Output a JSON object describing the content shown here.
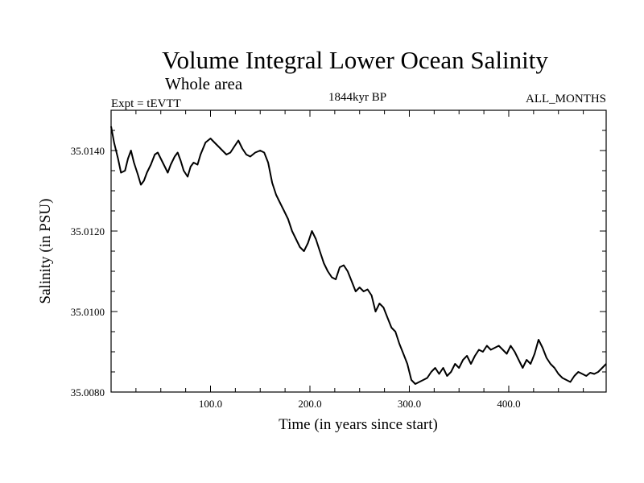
{
  "chart_data": {
    "type": "line",
    "title": "Volume Integral Lower Ocean Salinity",
    "subtitle": "Whole area",
    "expt_label": "Expt = tEVTT",
    "period_label": "1844kyr BP",
    "months_label": "ALL_MONTHS",
    "xlabel": "Time (in years since start)",
    "ylabel": "Salinity (in PSU)",
    "xlim": [
      0,
      498
    ],
    "ylim": [
      35.008,
      35.015
    ],
    "x_ticks": [
      100,
      200,
      300,
      400
    ],
    "x_tick_labels": [
      "100.0",
      "200.0",
      "300.0",
      "400.0"
    ],
    "y_ticks": [
      35.008,
      35.01,
      35.012,
      35.014
    ],
    "y_tick_labels": [
      "35.0080",
      "35.0100",
      "35.0120",
      "35.0140"
    ],
    "grid": false,
    "series": [
      {
        "name": "Salinity",
        "color": "#000000",
        "x": [
          0,
          3,
          7,
          10,
          14,
          17,
          20,
          23,
          27,
          30,
          33,
          36,
          40,
          44,
          47,
          50,
          54,
          57,
          60,
          64,
          67,
          70,
          73,
          77,
          80,
          83,
          87,
          90,
          95,
          100,
          104,
          108,
          112,
          116,
          120,
          124,
          128,
          132,
          136,
          140,
          145,
          150,
          154,
          158,
          162,
          166,
          170,
          174,
          178,
          182,
          186,
          190,
          194,
          198,
          202,
          206,
          210,
          214,
          218,
          222,
          226,
          230,
          234,
          238,
          242,
          246,
          250,
          254,
          258,
          262,
          266,
          270,
          274,
          278,
          282,
          286,
          290,
          294,
          298,
          302,
          306,
          310,
          314,
          318,
          322,
          326,
          330,
          334,
          338,
          342,
          346,
          350,
          354,
          358,
          362,
          366,
          370,
          374,
          378,
          382,
          386,
          390,
          394,
          398,
          402,
          406,
          410,
          414,
          418,
          422,
          426,
          430,
          434,
          438,
          442,
          446,
          450,
          454,
          458,
          462,
          466,
          470,
          474,
          478,
          482,
          486,
          490,
          494,
          498
        ],
        "values": [
          35.0146,
          35.0142,
          35.0138,
          35.01345,
          35.0135,
          35.0138,
          35.014,
          35.0137,
          35.0134,
          35.01315,
          35.01325,
          35.01345,
          35.01365,
          35.0139,
          35.01395,
          35.0138,
          35.0136,
          35.01345,
          35.01365,
          35.01385,
          35.01395,
          35.01375,
          35.0135,
          35.01335,
          35.0136,
          35.0137,
          35.01365,
          35.0139,
          35.0142,
          35.0143,
          35.0142,
          35.0141,
          35.014,
          35.0139,
          35.01395,
          35.0141,
          35.01425,
          35.01405,
          35.0139,
          35.01385,
          35.01395,
          35.014,
          35.01395,
          35.0137,
          35.0132,
          35.0129,
          35.0127,
          35.0125,
          35.0123,
          35.012,
          35.0118,
          35.0116,
          35.0115,
          35.0117,
          35.012,
          35.0118,
          35.0115,
          35.0112,
          35.011,
          35.01085,
          35.0108,
          35.0111,
          35.01115,
          35.011,
          35.01075,
          35.0105,
          35.0106,
          35.0105,
          35.01055,
          35.0104,
          35.01,
          35.0102,
          35.0101,
          35.00985,
          35.0096,
          35.0095,
          35.0092,
          35.00895,
          35.0087,
          35.0083,
          35.0082,
          35.00825,
          35.0083,
          35.00835,
          35.0085,
          35.0086,
          35.00845,
          35.0086,
          35.0084,
          35.0085,
          35.0087,
          35.0086,
          35.0088,
          35.0089,
          35.0087,
          35.0089,
          35.00905,
          35.009,
          35.00915,
          35.00905,
          35.0091,
          35.00915,
          35.00905,
          35.00895,
          35.00915,
          35.009,
          35.0088,
          35.0086,
          35.0088,
          35.0087,
          35.00895,
          35.0093,
          35.0091,
          35.00885,
          35.0087,
          35.0086,
          35.00845,
          35.00835,
          35.0083,
          35.00825,
          35.0084,
          35.0085,
          35.00845,
          35.0084,
          35.00848,
          35.00845,
          35.0085,
          35.0086,
          35.0087
        ]
      }
    ]
  }
}
